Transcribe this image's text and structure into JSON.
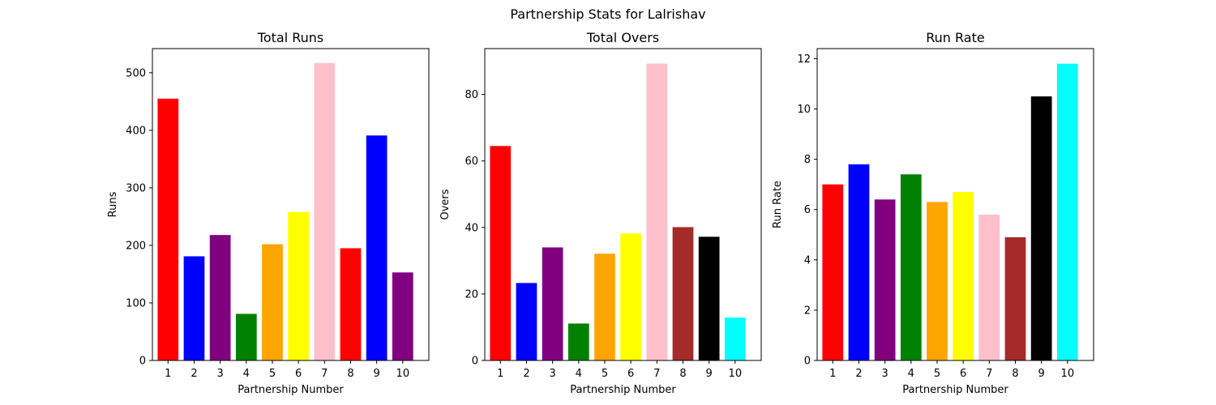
{
  "figure": {
    "suptitle": "Partnership Stats for Lalrishav"
  },
  "chart_data": [
    {
      "type": "bar",
      "title": "Total Runs",
      "xlabel": "Partnership Number",
      "ylabel": "Runs",
      "categories": [
        "1",
        "2",
        "3",
        "4",
        "5",
        "6",
        "7",
        "8",
        "9",
        "10"
      ],
      "values": [
        455,
        181,
        218,
        81,
        202,
        258,
        517,
        195,
        391,
        153
      ],
      "colors": [
        "#ff0000",
        "#0000ff",
        "#800080",
        "#008000",
        "#ffa500",
        "#ffff00",
        "#ffc0cb",
        "#ff0000",
        "#0000ff",
        "#800080"
      ],
      "ylim": [
        0,
        542
      ],
      "yticks": [
        0,
        100,
        200,
        300,
        400,
        500
      ],
      "grid": false
    },
    {
      "type": "bar",
      "title": "Total Overs",
      "xlabel": "Partnership Number",
      "ylabel": "Overs",
      "categories": [
        "1",
        "2",
        "3",
        "4",
        "5",
        "6",
        "7",
        "8",
        "9",
        "10"
      ],
      "values": [
        64.5,
        23.3,
        34.0,
        11.1,
        32.1,
        38.2,
        89.3,
        40.1,
        37.2,
        12.9
      ],
      "colors": [
        "#ff0000",
        "#0000ff",
        "#800080",
        "#008000",
        "#ffa500",
        "#ffff00",
        "#ffc0cb",
        "#a52a2a",
        "#000000",
        "#00ffff"
      ],
      "ylim": [
        0,
        93.8
      ],
      "yticks": [
        0,
        20,
        40,
        60,
        80
      ],
      "grid": false
    },
    {
      "type": "bar",
      "title": "Run Rate",
      "xlabel": "Partnership Number",
      "ylabel": "Run Rate",
      "categories": [
        "1",
        "2",
        "3",
        "4",
        "5",
        "6",
        "7",
        "8",
        "9",
        "10"
      ],
      "values": [
        7.0,
        7.8,
        6.4,
        7.4,
        6.3,
        6.7,
        5.8,
        4.9,
        10.5,
        11.8
      ],
      "colors": [
        "#ff0000",
        "#0000ff",
        "#800080",
        "#008000",
        "#ffa500",
        "#ffff00",
        "#ffc0cb",
        "#a52a2a",
        "#000000",
        "#00ffff"
      ],
      "ylim": [
        0,
        12.4
      ],
      "yticks": [
        0,
        2,
        4,
        6,
        8,
        10,
        12
      ],
      "grid": false
    }
  ]
}
